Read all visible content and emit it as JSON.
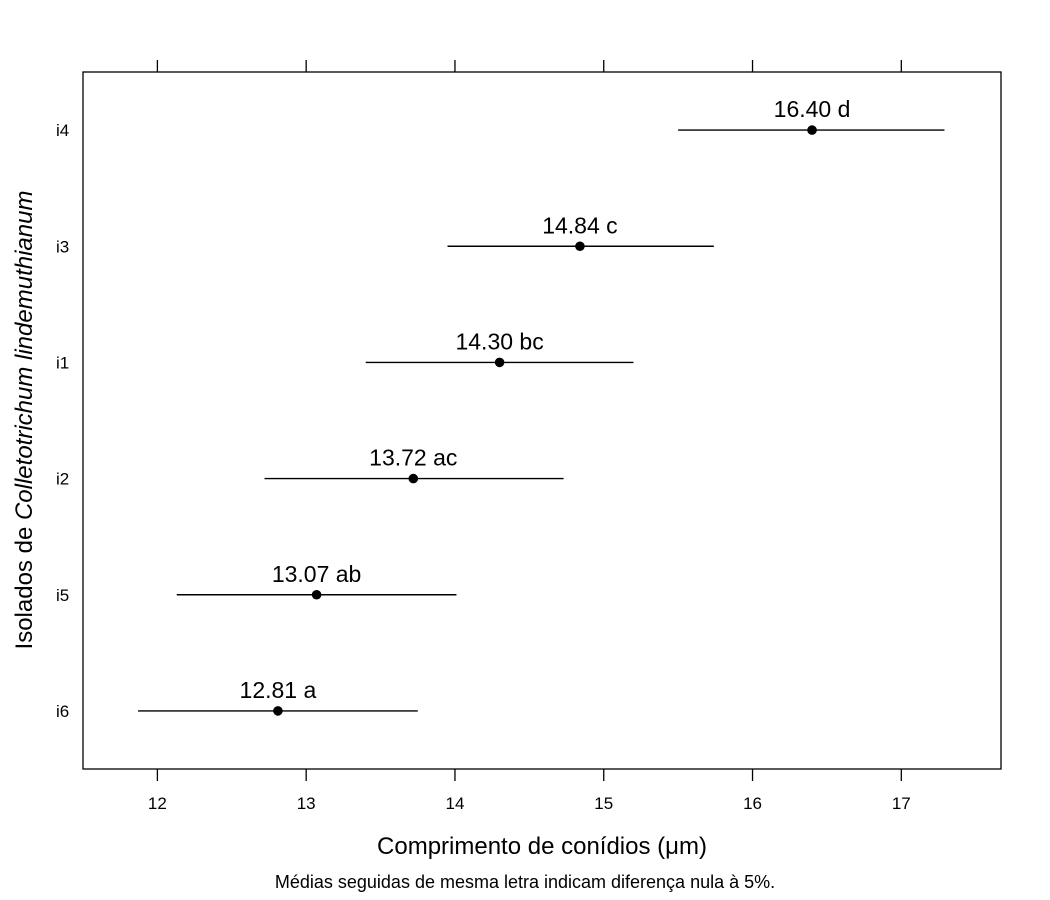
{
  "chart_data": {
    "type": "dotplot-interval",
    "orientation": "horizontal",
    "xlabel": "Comprimento de conídios (μm)",
    "ylabel": {
      "prefix": "Isolados de ",
      "italic": "Colletotrichum lindemuthianum"
    },
    "caption": "Médias seguidas de mesma letra indicam diferença nula à 5%.",
    "xlim": [
      11.5,
      17.67
    ],
    "x_ticks": [
      12,
      13,
      14,
      15,
      16,
      17
    ],
    "x_tick_labels": [
      "12",
      "13",
      "14",
      "15",
      "16",
      "17"
    ],
    "top_axis_ticks": true,
    "grid": false,
    "color": "#000000",
    "categories": [
      "i6",
      "i5",
      "i2",
      "i1",
      "i3",
      "i4"
    ],
    "points": [
      {
        "category": "i6",
        "mean": 12.81,
        "lower": 11.87,
        "upper": 13.75,
        "label": "12.81 a"
      },
      {
        "category": "i5",
        "mean": 13.07,
        "lower": 12.13,
        "upper": 14.01,
        "label": "13.07 ab"
      },
      {
        "category": "i2",
        "mean": 13.72,
        "lower": 12.72,
        "upper": 14.73,
        "label": "13.72 ac"
      },
      {
        "category": "i1",
        "mean": 14.3,
        "lower": 13.4,
        "upper": 15.2,
        "label": "14.30 bc"
      },
      {
        "category": "i3",
        "mean": 14.84,
        "lower": 13.95,
        "upper": 15.74,
        "label": "14.84 c"
      },
      {
        "category": "i4",
        "mean": 16.4,
        "lower": 15.5,
        "upper": 17.29,
        "label": "16.40 d"
      }
    ]
  }
}
